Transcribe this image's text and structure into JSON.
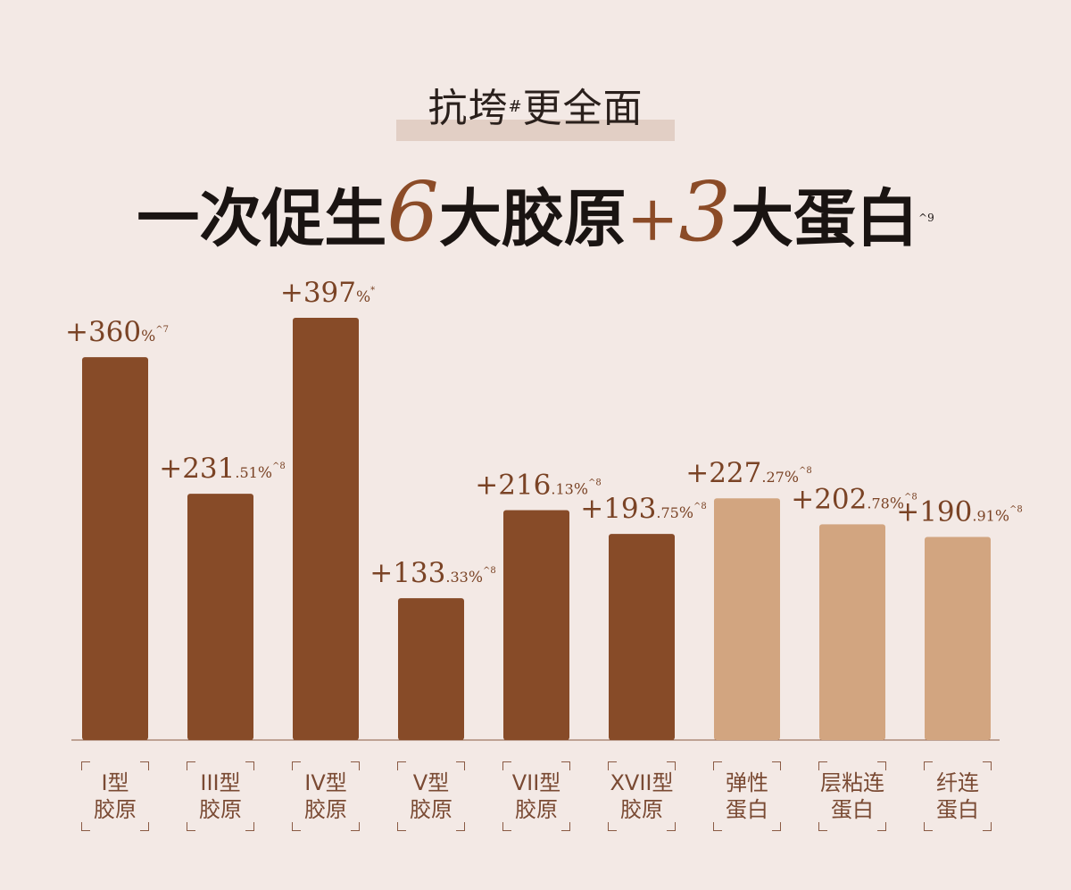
{
  "header": {
    "subtitle_main": "抗垮",
    "subtitle_mark": "#",
    "subtitle_rest": "更全面",
    "headline_a": "一次促生",
    "headline_num1": "6",
    "headline_b": "大胶原",
    "headline_plus": "+",
    "headline_num2": "3",
    "headline_c": "大蛋白",
    "headline_note": "^9"
  },
  "colors": {
    "collagen": "#874b28",
    "protein": "#d2a580",
    "label": "#7a4325",
    "axis": "#8a5a44"
  },
  "chart_data": {
    "type": "bar",
    "ylim": [
      0,
      400
    ],
    "categories": [
      {
        "line1": "I型",
        "line2": "胶原",
        "value": 360,
        "int": "+360",
        "dec": "",
        "suffix": "%",
        "note": "^7",
        "group": "collagen"
      },
      {
        "line1": "III型",
        "line2": "胶原",
        "value": 231.51,
        "int": "+231",
        "dec": ".51",
        "suffix": "%",
        "note": "^8",
        "group": "collagen"
      },
      {
        "line1": "IV型",
        "line2": "胶原",
        "value": 397,
        "int": "+397",
        "dec": "",
        "suffix": "%",
        "note": "*",
        "group": "collagen"
      },
      {
        "line1": "V型",
        "line2": "胶原",
        "value": 133.33,
        "int": "+133",
        "dec": ".33",
        "suffix": "%",
        "note": "^8",
        "group": "collagen"
      },
      {
        "line1": "VII型",
        "line2": "胶原",
        "value": 216.13,
        "int": "+216",
        "dec": ".13",
        "suffix": "%",
        "note": "^8",
        "group": "collagen"
      },
      {
        "line1": "XVII型",
        "line2": "胶原",
        "value": 193.75,
        "int": "+193",
        "dec": ".75",
        "suffix": "%",
        "note": "^8",
        "group": "collagen"
      },
      {
        "line1": "弹性",
        "line2": "蛋白",
        "value": 227.27,
        "int": "+227",
        "dec": ".27",
        "suffix": "%",
        "note": "^8",
        "group": "protein"
      },
      {
        "line1": "层粘连",
        "line2": "蛋白",
        "value": 202.78,
        "int": "+202",
        "dec": ".78",
        "suffix": "%",
        "note": "^8",
        "group": "protein"
      },
      {
        "line1": "纤连",
        "line2": "蛋白",
        "value": 190.91,
        "int": "+190",
        "dec": ".91",
        "suffix": "%",
        "note": "^8",
        "group": "protein"
      }
    ]
  }
}
